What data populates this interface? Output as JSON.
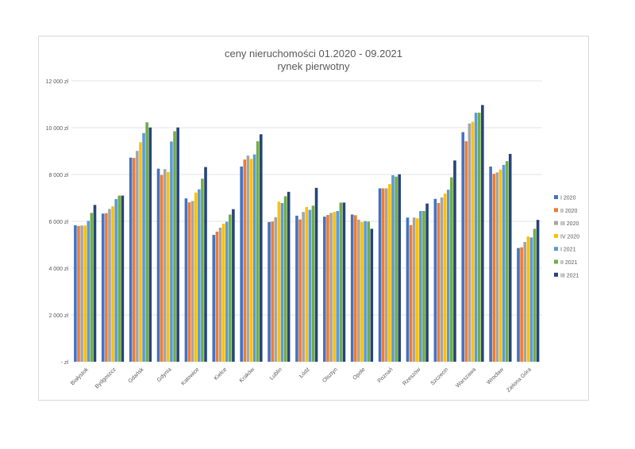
{
  "chart_data": {
    "type": "bar",
    "title": "ceny nieruchomości 01.2020 - 09.2021",
    "subtitle": "rynek pierwotny",
    "xlabel": "",
    "ylabel": "",
    "ylim": [
      0,
      12000
    ],
    "grid": true,
    "legend_position": "right",
    "y_ticks": [
      0,
      2000,
      4000,
      6000,
      8000,
      10000,
      12000
    ],
    "y_tick_labels": [
      "-     zł",
      "2 000 zł",
      "4 000 zł",
      "6 000 zł",
      "8 000 zł",
      "10 000 zł",
      "12 000 zł"
    ],
    "categories": [
      "Białystok",
      "Bydgoszcz",
      "Gdańsk",
      "Gdynia",
      "Katowice",
      "Kielce",
      "Kraków",
      "Lublin",
      "Łódź",
      "Olsztyn",
      "Opole",
      "Poznań",
      "Rzeszów",
      "Szczecin",
      "Warszawa",
      "Wrocław",
      "Zielona Góra"
    ],
    "series": [
      {
        "name": "I 2020",
        "color": "#4472C4",
        "values": [
          5830,
          6330,
          8720,
          8250,
          6980,
          5420,
          8340,
          5970,
          6240,
          6200,
          6290,
          7410,
          6160,
          6960,
          9810,
          8340,
          4860
        ]
      },
      {
        "name": "II 2020",
        "color": "#ED7D31",
        "values": [
          5800,
          6350,
          8710,
          7980,
          6810,
          5560,
          8640,
          5990,
          6080,
          6270,
          6260,
          7410,
          5840,
          6780,
          9420,
          8030,
          4890
        ]
      },
      {
        "name": "III 2020",
        "color": "#A5A5A5",
        "values": [
          5820,
          6530,
          9010,
          8230,
          6870,
          5730,
          8810,
          6180,
          6400,
          6360,
          6070,
          7410,
          6160,
          7020,
          10180,
          8090,
          5120
        ]
      },
      {
        "name": "IV 2020",
        "color": "#FFC000",
        "values": [
          5820,
          6640,
          9380,
          8110,
          7230,
          5900,
          8670,
          6840,
          6610,
          6400,
          5970,
          7590,
          6130,
          7190,
          10250,
          8210,
          5350
        ]
      },
      {
        "name": "I 2021",
        "color": "#5B9BD5",
        "values": [
          6020,
          6950,
          9770,
          9410,
          7370,
          5980,
          8860,
          6780,
          6490,
          6440,
          6010,
          7970,
          6440,
          7350,
          10640,
          8410,
          5310
        ]
      },
      {
        "name": "II 2021",
        "color": "#70AD47",
        "values": [
          6360,
          7100,
          10230,
          9850,
          7820,
          6290,
          9420,
          7070,
          6670,
          6800,
          5990,
          7910,
          6440,
          7880,
          10640,
          8570,
          5680
        ]
      },
      {
        "name": "III 2021",
        "color": "#264478",
        "values": [
          6700,
          7100,
          10010,
          10010,
          8320,
          6520,
          9720,
          7260,
          7430,
          6800,
          5680,
          8010,
          6760,
          8600,
          10970,
          8880,
          6060
        ]
      }
    ]
  }
}
